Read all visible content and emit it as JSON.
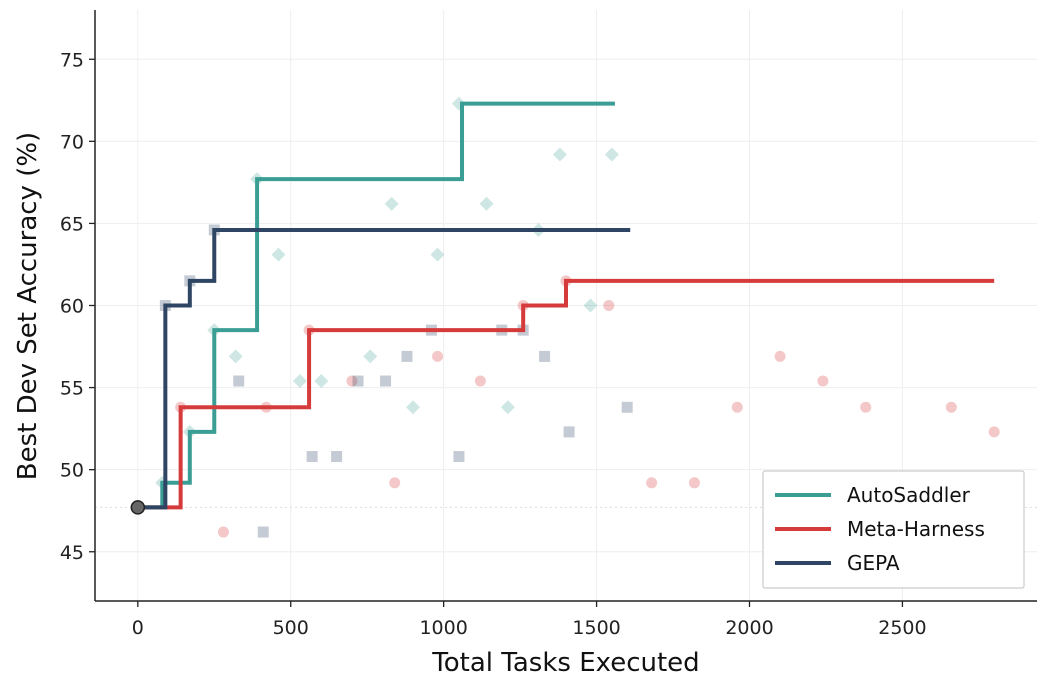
{
  "chart_data": {
    "type": "line",
    "step": true,
    "xlabel": "Total Tasks Executed",
    "ylabel": "Best Dev Set Accuracy (%)",
    "xlim": [
      -140,
      2940
    ],
    "ylim": [
      42,
      78
    ],
    "xticks": [
      0,
      500,
      1000,
      1500,
      2000,
      2500
    ],
    "yticks": [
      45,
      50,
      55,
      60,
      65,
      70,
      75
    ],
    "grid": true,
    "legend": "bottom-right",
    "baseline": {
      "x": 0,
      "y": 47.7
    },
    "series": [
      {
        "name": "AutoSaddler",
        "color": "#3a9e95",
        "marker": "diamond",
        "best": [
          [
            0,
            47.7
          ],
          [
            80,
            49.2
          ],
          [
            170,
            52.3
          ],
          [
            250,
            58.5
          ],
          [
            390,
            67.7
          ],
          [
            1060,
            72.3
          ],
          [
            1560,
            72.3
          ]
        ],
        "points": [
          [
            80,
            49.2
          ],
          [
            170,
            52.3
          ],
          [
            250,
            58.5
          ],
          [
            320,
            56.9
          ],
          [
            390,
            67.7
          ],
          [
            460,
            63.1
          ],
          [
            530,
            55.4
          ],
          [
            600,
            55.4
          ],
          [
            760,
            56.9
          ],
          [
            830,
            66.2
          ],
          [
            900,
            53.8
          ],
          [
            980,
            63.1
          ],
          [
            1050,
            72.3
          ],
          [
            1140,
            66.2
          ],
          [
            1210,
            53.8
          ],
          [
            1310,
            64.6
          ],
          [
            1380,
            69.2
          ],
          [
            1480,
            60.0
          ],
          [
            1550,
            69.2
          ]
        ]
      },
      {
        "name": "Meta-Harness",
        "color": "#d63b3b",
        "marker": "circle",
        "best": [
          [
            0,
            47.7
          ],
          [
            140,
            53.8
          ],
          [
            560,
            58.5
          ],
          [
            1260,
            60.0
          ],
          [
            1400,
            61.5
          ],
          [
            2800,
            61.5
          ]
        ],
        "points": [
          [
            140,
            53.8
          ],
          [
            280,
            46.2
          ],
          [
            420,
            53.8
          ],
          [
            560,
            58.5
          ],
          [
            700,
            55.4
          ],
          [
            840,
            49.2
          ],
          [
            980,
            56.9
          ],
          [
            1120,
            55.4
          ],
          [
            1260,
            60.0
          ],
          [
            1400,
            61.5
          ],
          [
            1540,
            60.0
          ],
          [
            1680,
            49.2
          ],
          [
            1820,
            49.2
          ],
          [
            1960,
            53.8
          ],
          [
            2100,
            56.9
          ],
          [
            2240,
            55.4
          ],
          [
            2380,
            53.8
          ],
          [
            2660,
            53.8
          ],
          [
            2800,
            52.3
          ]
        ]
      },
      {
        "name": "GEPA",
        "color": "#2e4563",
        "marker": "square",
        "best": [
          [
            0,
            47.7
          ],
          [
            90,
            60.0
          ],
          [
            170,
            61.5
          ],
          [
            250,
            64.6
          ],
          [
            1610,
            64.6
          ]
        ],
        "points": [
          [
            90,
            60.0
          ],
          [
            170,
            61.5
          ],
          [
            250,
            64.6
          ],
          [
            330,
            55.4
          ],
          [
            410,
            46.2
          ],
          [
            570,
            50.8
          ],
          [
            650,
            50.8
          ],
          [
            720,
            55.4
          ],
          [
            810,
            55.4
          ],
          [
            880,
            56.9
          ],
          [
            960,
            58.5
          ],
          [
            1050,
            50.8
          ],
          [
            1190,
            58.5
          ],
          [
            1260,
            58.5
          ],
          [
            1330,
            56.9
          ],
          [
            1410,
            52.3
          ],
          [
            1600,
            53.8
          ]
        ]
      }
    ]
  }
}
